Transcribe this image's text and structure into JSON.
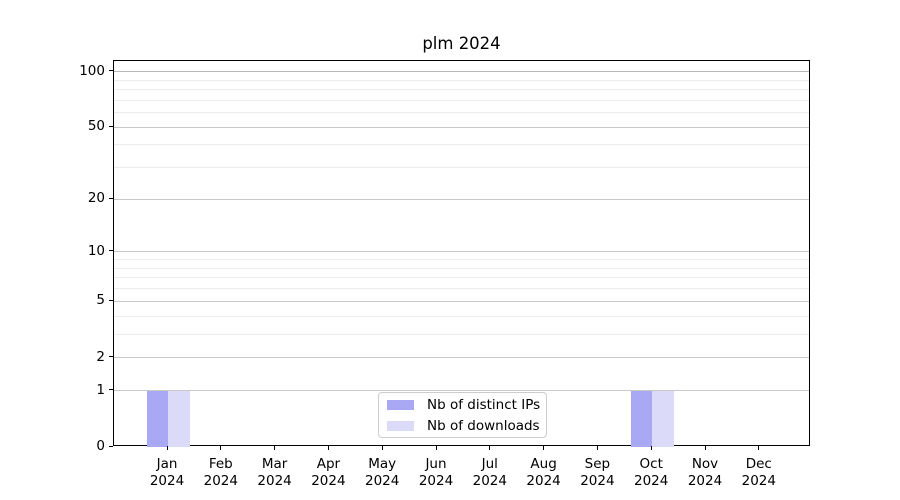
{
  "chart_data": {
    "type": "bar",
    "title": "plm 2024",
    "categories": [
      "Jan 2024",
      "Feb 2024",
      "Mar 2024",
      "Apr 2024",
      "May 2024",
      "Jun 2024",
      "Jul 2024",
      "Aug 2024",
      "Sep 2024",
      "Oct 2024",
      "Nov 2024",
      "Dec 2024"
    ],
    "series": [
      {
        "name": "Nb of distinct IPs",
        "color": "#a8a8f4",
        "values": [
          1,
          0,
          0,
          0,
          0,
          0,
          0,
          0,
          0,
          1,
          0,
          0
        ]
      },
      {
        "name": "Nb of downloads",
        "color": "#dbdbf9",
        "values": [
          1,
          0,
          0,
          0,
          0,
          0,
          0,
          0,
          0,
          1,
          0,
          0
        ]
      }
    ],
    "xlabel": "",
    "ylabel": "",
    "y_axis": {
      "scale": "log1p",
      "ticks": [
        0,
        1,
        2,
        5,
        10,
        20,
        50,
        100
      ],
      "minor_gridlines": [
        3,
        4,
        6,
        7,
        8,
        9,
        30,
        40,
        60,
        70,
        80,
        90
      ],
      "ylim": [
        0,
        114
      ]
    },
    "grid": true,
    "legend": {
      "position": "lower center"
    },
    "colors": {
      "major_grid": "#c9c9c9",
      "grid_at_100": "#b8b8b8",
      "minor_grid": "#ededed",
      "axis": "#000000",
      "background": "#ffffff"
    }
  }
}
